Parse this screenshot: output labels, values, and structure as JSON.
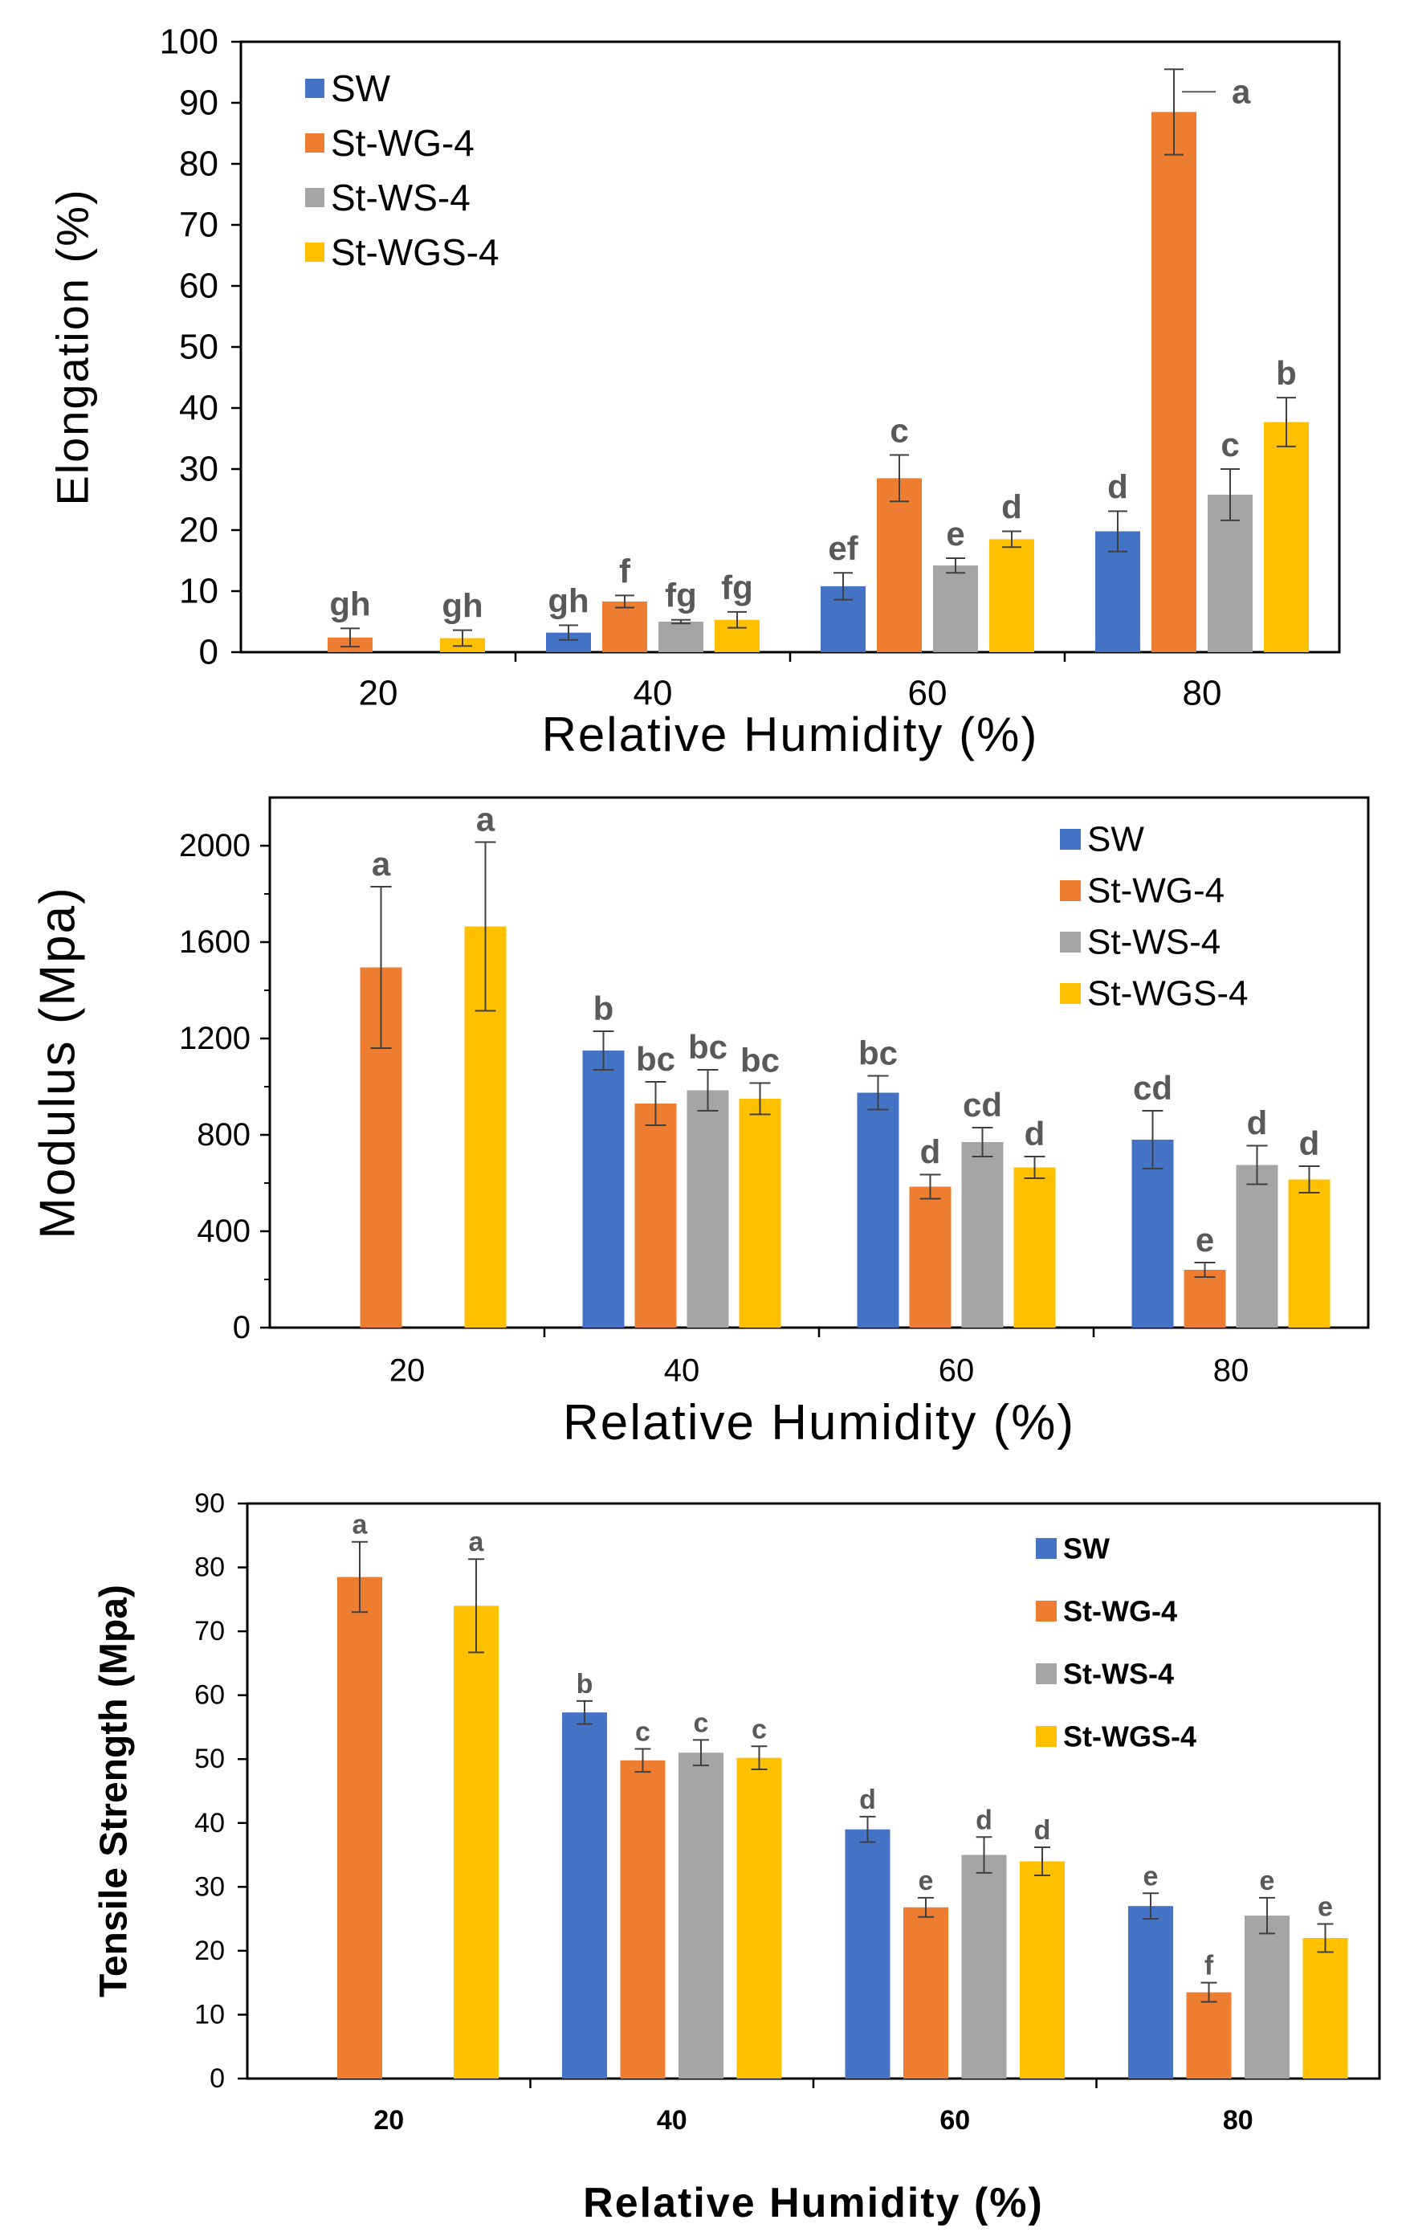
{
  "colors": {
    "SW": "#4472C4",
    "St-WG-4": "#ED7D31",
    "St-WS-4": "#A5A5A5",
    "St-WGS-4": "#FFC000",
    "error_bar": "#404040",
    "sig_label": "#595959"
  },
  "chart_data": [
    {
      "type": "bar",
      "categories": [
        "20",
        "40",
        "60",
        "80"
      ],
      "xlabel": "Relative Humidity (%)",
      "ylabel": "Elongation (%)",
      "ylim": [
        0,
        100
      ],
      "yticks": [
        0,
        10,
        20,
        30,
        40,
        50,
        60,
        70,
        80,
        90,
        100
      ],
      "legend_position": "top-left",
      "series": [
        {
          "name": "SW",
          "values": [
            null,
            3.2,
            10.8,
            19.8
          ],
          "errors": [
            null,
            1.2,
            2.2,
            3.3
          ],
          "labels": [
            null,
            "gh",
            "ef",
            "d"
          ]
        },
        {
          "name": "St-WG-4",
          "values": [
            2.4,
            8.3,
            28.5,
            88.5
          ],
          "errors": [
            1.5,
            1.0,
            3.8,
            7.0
          ],
          "labels": [
            "gh",
            "f",
            "c",
            "a"
          ]
        },
        {
          "name": "St-WS-4",
          "values": [
            null,
            5.0,
            14.2,
            25.8
          ],
          "errors": [
            null,
            0.3,
            1.2,
            4.2
          ],
          "labels": [
            null,
            "fg",
            "e",
            "c"
          ]
        },
        {
          "name": "St-WGS-4",
          "values": [
            2.3,
            5.3,
            18.5,
            37.7
          ],
          "errors": [
            1.3,
            1.3,
            1.3,
            4.0
          ],
          "labels": [
            "gh",
            "fg",
            "d",
            "b"
          ]
        }
      ]
    },
    {
      "type": "bar",
      "categories": [
        "20",
        "40",
        "60",
        "80"
      ],
      "xlabel": "Relative Humidity (%)",
      "ylabel": "Modulus (Mpa)",
      "ylim": [
        0,
        2200
      ],
      "yticks": [
        0,
        400,
        800,
        1200,
        1600,
        2000
      ],
      "legend_position": "top-right",
      "series": [
        {
          "name": "SW",
          "values": [
            null,
            1150,
            975,
            780
          ],
          "errors": [
            null,
            80,
            70,
            120
          ],
          "labels": [
            null,
            "b",
            "bc",
            "cd"
          ]
        },
        {
          "name": "St-WG-4",
          "values": [
            1495,
            930,
            585,
            240
          ],
          "errors": [
            335,
            90,
            50,
            30
          ],
          "labels": [
            "a",
            "bc",
            "d",
            "e"
          ]
        },
        {
          "name": "St-WS-4",
          "values": [
            null,
            985,
            770,
            675
          ],
          "errors": [
            null,
            85,
            60,
            80
          ],
          "labels": [
            null,
            "bc",
            "cd",
            "d"
          ]
        },
        {
          "name": "St-WGS-4",
          "values": [
            1665,
            950,
            665,
            615
          ],
          "errors": [
            350,
            65,
            45,
            55
          ],
          "labels": [
            "a",
            "bc",
            "d",
            "d"
          ]
        }
      ]
    },
    {
      "type": "bar",
      "categories": [
        "20",
        "40",
        "60",
        "80"
      ],
      "xlabel": "Relative Humidity (%)",
      "ylabel": "Tensile Strength (Mpa)",
      "ylim": [
        0,
        90
      ],
      "yticks": [
        0,
        10,
        20,
        30,
        40,
        50,
        60,
        70,
        80,
        90
      ],
      "legend_position": "top-right",
      "series": [
        {
          "name": "SW",
          "values": [
            null,
            57.3,
            39.0,
            27.0
          ],
          "errors": [
            null,
            1.8,
            2.0,
            2.0
          ],
          "labels": [
            null,
            "b",
            "d",
            "e"
          ]
        },
        {
          "name": "St-WG-4",
          "values": [
            78.5,
            49.8,
            26.8,
            13.5
          ],
          "errors": [
            5.5,
            1.8,
            1.5,
            1.5
          ],
          "labels": [
            "a",
            "c",
            "e",
            "f"
          ]
        },
        {
          "name": "St-WS-4",
          "values": [
            null,
            51.0,
            35.0,
            25.5
          ],
          "errors": [
            null,
            2.0,
            2.8,
            2.8
          ],
          "labels": [
            null,
            "c",
            "d",
            "e"
          ]
        },
        {
          "name": "St-WGS-4",
          "values": [
            74.0,
            50.2,
            34.0,
            22.0
          ],
          "errors": [
            7.3,
            1.8,
            2.2,
            2.2
          ],
          "labels": [
            "a",
            "c",
            "d",
            "e"
          ]
        }
      ]
    }
  ]
}
